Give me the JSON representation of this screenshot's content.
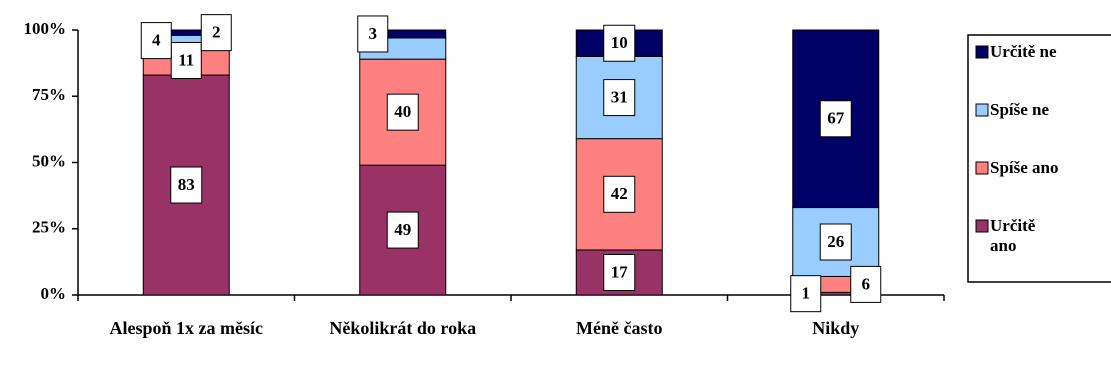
{
  "chart_data": {
    "type": "stacked_bar_100",
    "categories": [
      "Alespoň 1x za měsíc",
      "Několikrát do roka",
      "Méně často",
      "Nikdy"
    ],
    "series": [
      {
        "name": "Určitě ano",
        "color": "#993366",
        "values": [
          83,
          49,
          17,
          1
        ],
        "value_labels": [
          "83",
          "49",
          "17",
          "1"
        ]
      },
      {
        "name": "Spíše ano",
        "color": "#ff8080",
        "values": [
          11,
          40,
          42,
          6
        ],
        "value_labels": [
          "11",
          "40",
          "42",
          "6"
        ]
      },
      {
        "name": "Spíše ne",
        "color": "#99ccff",
        "values": [
          4,
          8,
          31,
          26
        ],
        "value_labels": [
          "4",
          null,
          "31",
          "26"
        ]
      },
      {
        "name": "Určitě ne",
        "color": "#000066",
        "values": [
          2,
          3,
          10,
          67
        ],
        "value_labels": [
          "2",
          "3",
          "10",
          "67"
        ]
      }
    ],
    "ylim": [
      0,
      100
    ],
    "yticks": [
      {
        "value": 0,
        "label": "0%"
      },
      {
        "value": 25,
        "label": "25%"
      },
      {
        "value": 50,
        "label": "50%"
      },
      {
        "value": 75,
        "label": "75%"
      },
      {
        "value": 100,
        "label": "100%"
      }
    ],
    "grid": false,
    "legend": "right"
  }
}
